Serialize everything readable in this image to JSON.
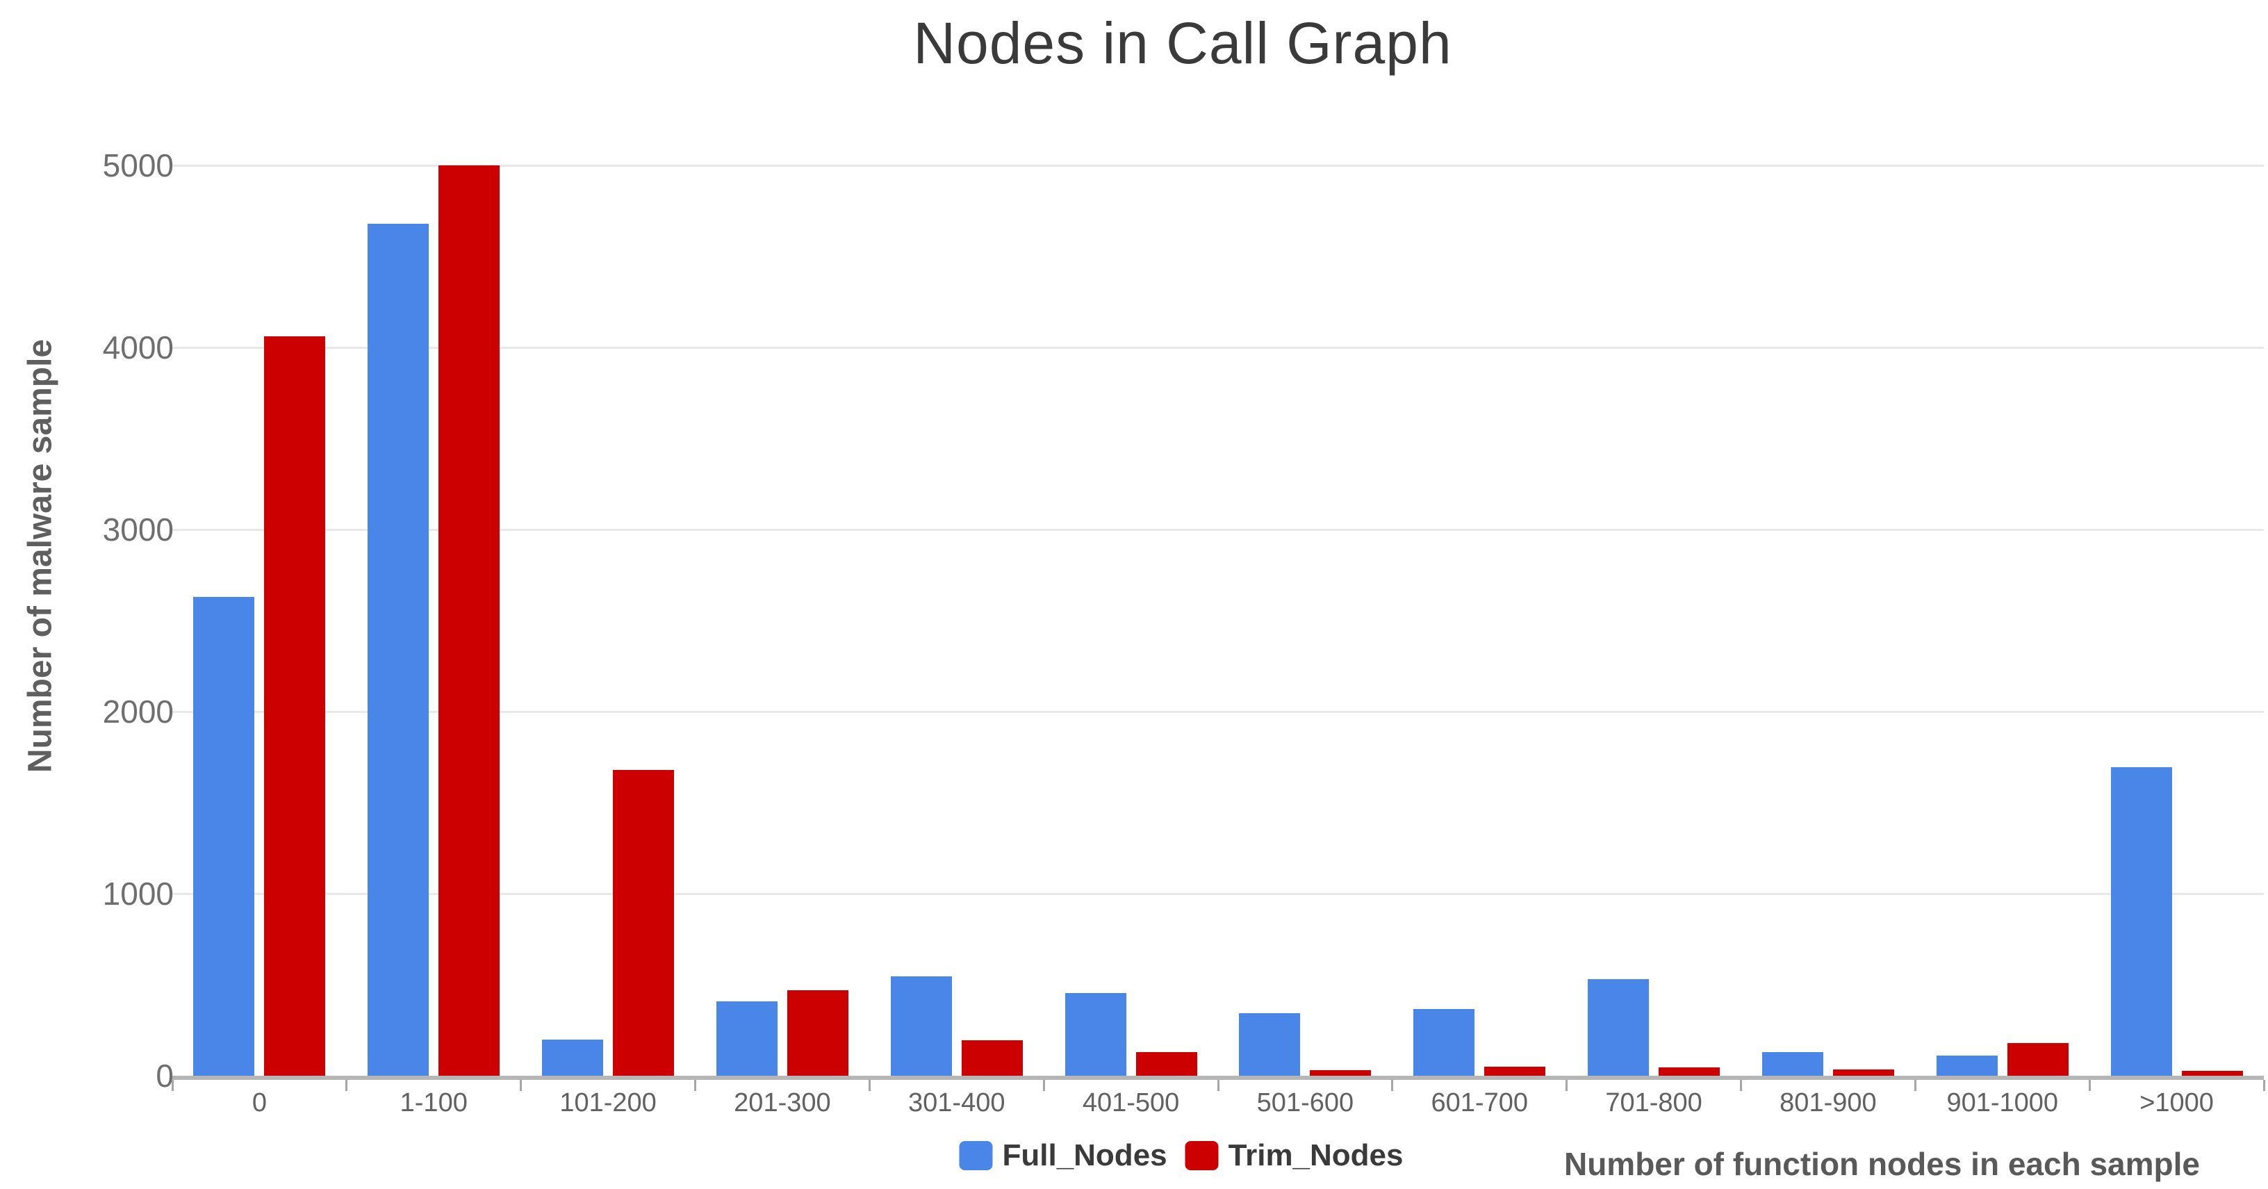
{
  "title": "Nodes in Call Graph",
  "colors": {
    "full_nodes": "#4a86e8",
    "trim_nodes": "#cc0000",
    "gridline": "#e9e9e9",
    "axis_line": "#b6b6b6",
    "tick_mark": "#a6a6a6",
    "y_tick_label": "#6e6e6e",
    "x_tick_label": "#616161",
    "axis_title": "#595959",
    "title_text": "#3a3a3a"
  },
  "legend": {
    "items": [
      {
        "label": "Full_Nodes",
        "color": "#4a86e8"
      },
      {
        "label": "Trim_Nodes",
        "color": "#cc0000"
      }
    ]
  },
  "chart_data": {
    "type": "bar",
    "title": "Nodes in Call Graph",
    "xlabel": "Number of function nodes in each sample",
    "ylabel": "Number of malware sample",
    "categories": [
      "0",
      "1-100",
      "101-200",
      "201-300",
      "301-400",
      "401-500",
      "501-600",
      "601-700",
      "701-800",
      "801-900",
      "901-1000",
      ">1000"
    ],
    "series": [
      {
        "name": "Full_Nodes",
        "color": "#4a86e8",
        "values": [
          2630,
          4680,
          200,
          410,
          545,
          455,
          345,
          365,
          530,
          130,
          110,
          1695
        ]
      },
      {
        "name": "Trim_Nodes",
        "color": "#cc0000",
        "values": [
          4060,
          5000,
          1680,
          470,
          195,
          130,
          30,
          50,
          45,
          35,
          180,
          25
        ]
      }
    ],
    "ylim": [
      0,
      5000
    ],
    "yticks": [
      0,
      1000,
      2000,
      3000,
      4000,
      5000
    ],
    "grid": true,
    "legend_position": "bottom"
  }
}
